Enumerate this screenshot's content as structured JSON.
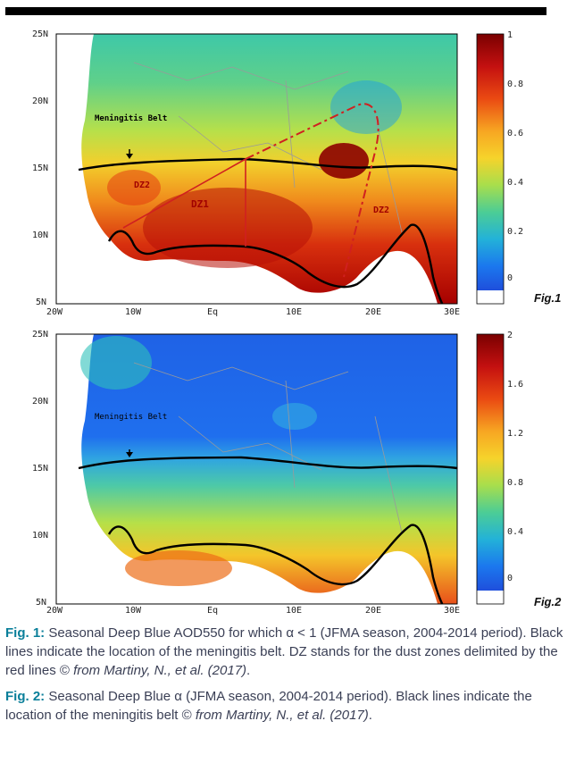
{
  "fig1": {
    "label": "Fig.1",
    "lat_ticks": [
      "25N",
      "20N",
      "15N",
      "10N",
      "5N"
    ],
    "lon_ticks": [
      "20W",
      "10W",
      "Eq",
      "10E",
      "20E",
      "30E"
    ],
    "colorbar_ticks": [
      "1",
      "0.8",
      "0.6",
      "0.4",
      "0.2",
      "0"
    ],
    "annotations": {
      "belt": "Meningitis Belt",
      "dz2_west": "DZ2",
      "dz1": "DZ1",
      "dz2_east": "DZ2"
    }
  },
  "fig2": {
    "label": "Fig.2",
    "lat_ticks": [
      "25N",
      "20N",
      "15N",
      "10N",
      "5N"
    ],
    "lon_ticks": [
      "20W",
      "10W",
      "Eq",
      "10E",
      "20E",
      "30E"
    ],
    "colorbar_ticks": [
      "2",
      "1.6",
      "1.2",
      "0.8",
      "0.4",
      "0"
    ],
    "annotations": {
      "belt": "Meningitis Belt"
    }
  },
  "caption1": {
    "ref": "Fig. 1:",
    "text": " Seasonal Deep Blue AOD550 for which α < 1 (JFMA season, 2004-2014 period). Black lines indicate the location of the meningitis belt. DZ stands for the dust zones delimited by the red lines © ",
    "source": "from Martiny, N., et al. (2017)",
    "end": "."
  },
  "caption2": {
    "ref": "Fig. 2:",
    "text": " Seasonal Deep Blue α (JFMA season, 2004-2014 period). Black lines indicate the location of the meningitis belt © ",
    "source": "from Martiny, N., et al. (2017)",
    "end": "."
  },
  "colors": {
    "colormap": [
      "#7a0000",
      "#b30000",
      "#e32b0c",
      "#f06a16",
      "#f7a622",
      "#f6d32b",
      "#d8e43a",
      "#96db58",
      "#55d08d",
      "#2fc2bb",
      "#1fa7e4",
      "#1b78ee",
      "#1f4fdc",
      "#ffffff"
    ],
    "ocean": "#ffffff",
    "belt_line": "#000000",
    "dust_zone_line": "#d02020",
    "caption_ref": "#0a7f9a"
  }
}
